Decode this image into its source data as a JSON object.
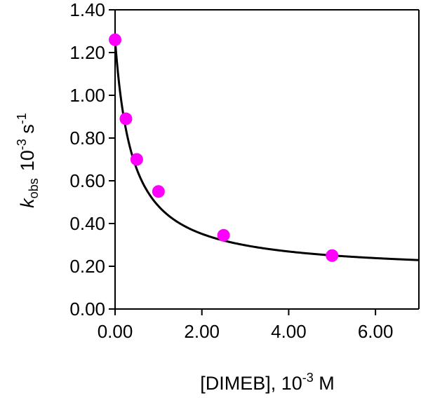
{
  "chart_data": {
    "type": "scatter",
    "title": "",
    "xlabel": {
      "main": "[DIMEB], 10",
      "exp": "-3",
      "unit": " M"
    },
    "ylabel": {
      "symbol": "k",
      "sub": "obs",
      "scale": "10",
      "scale_exp": "-3",
      "unit": " s",
      "unit_exp": "-1"
    },
    "xlim": [
      0,
      7
    ],
    "ylim": [
      0,
      1.4
    ],
    "xticks": [
      0,
      2,
      4,
      6
    ],
    "xtick_labels": [
      "0.00",
      "2.00",
      "4.00",
      "6.00"
    ],
    "yticks": [
      0,
      0.2,
      0.4,
      0.6,
      0.8,
      1.0,
      1.2,
      1.4
    ],
    "ytick_labels": [
      "0.00",
      "0.20",
      "0.40",
      "0.60",
      "0.80",
      "1.00",
      "1.20",
      "1.40"
    ],
    "series": [
      {
        "name": "measured",
        "style": "marker",
        "color": "#ff00ff",
        "x": [
          0,
          0.25,
          0.5,
          1.0,
          2.5,
          5.0
        ],
        "y": [
          1.26,
          0.89,
          0.7,
          0.55,
          0.345,
          0.25
        ]
      },
      {
        "name": "fit",
        "style": "line",
        "color": "#000000",
        "model": "(k0 + kc*K*x)/(1 + K*x)",
        "params": {
          "k0": 1.26,
          "kc": 0.17,
          "K": 2.5
        }
      }
    ],
    "grid": false,
    "legend": "none"
  }
}
